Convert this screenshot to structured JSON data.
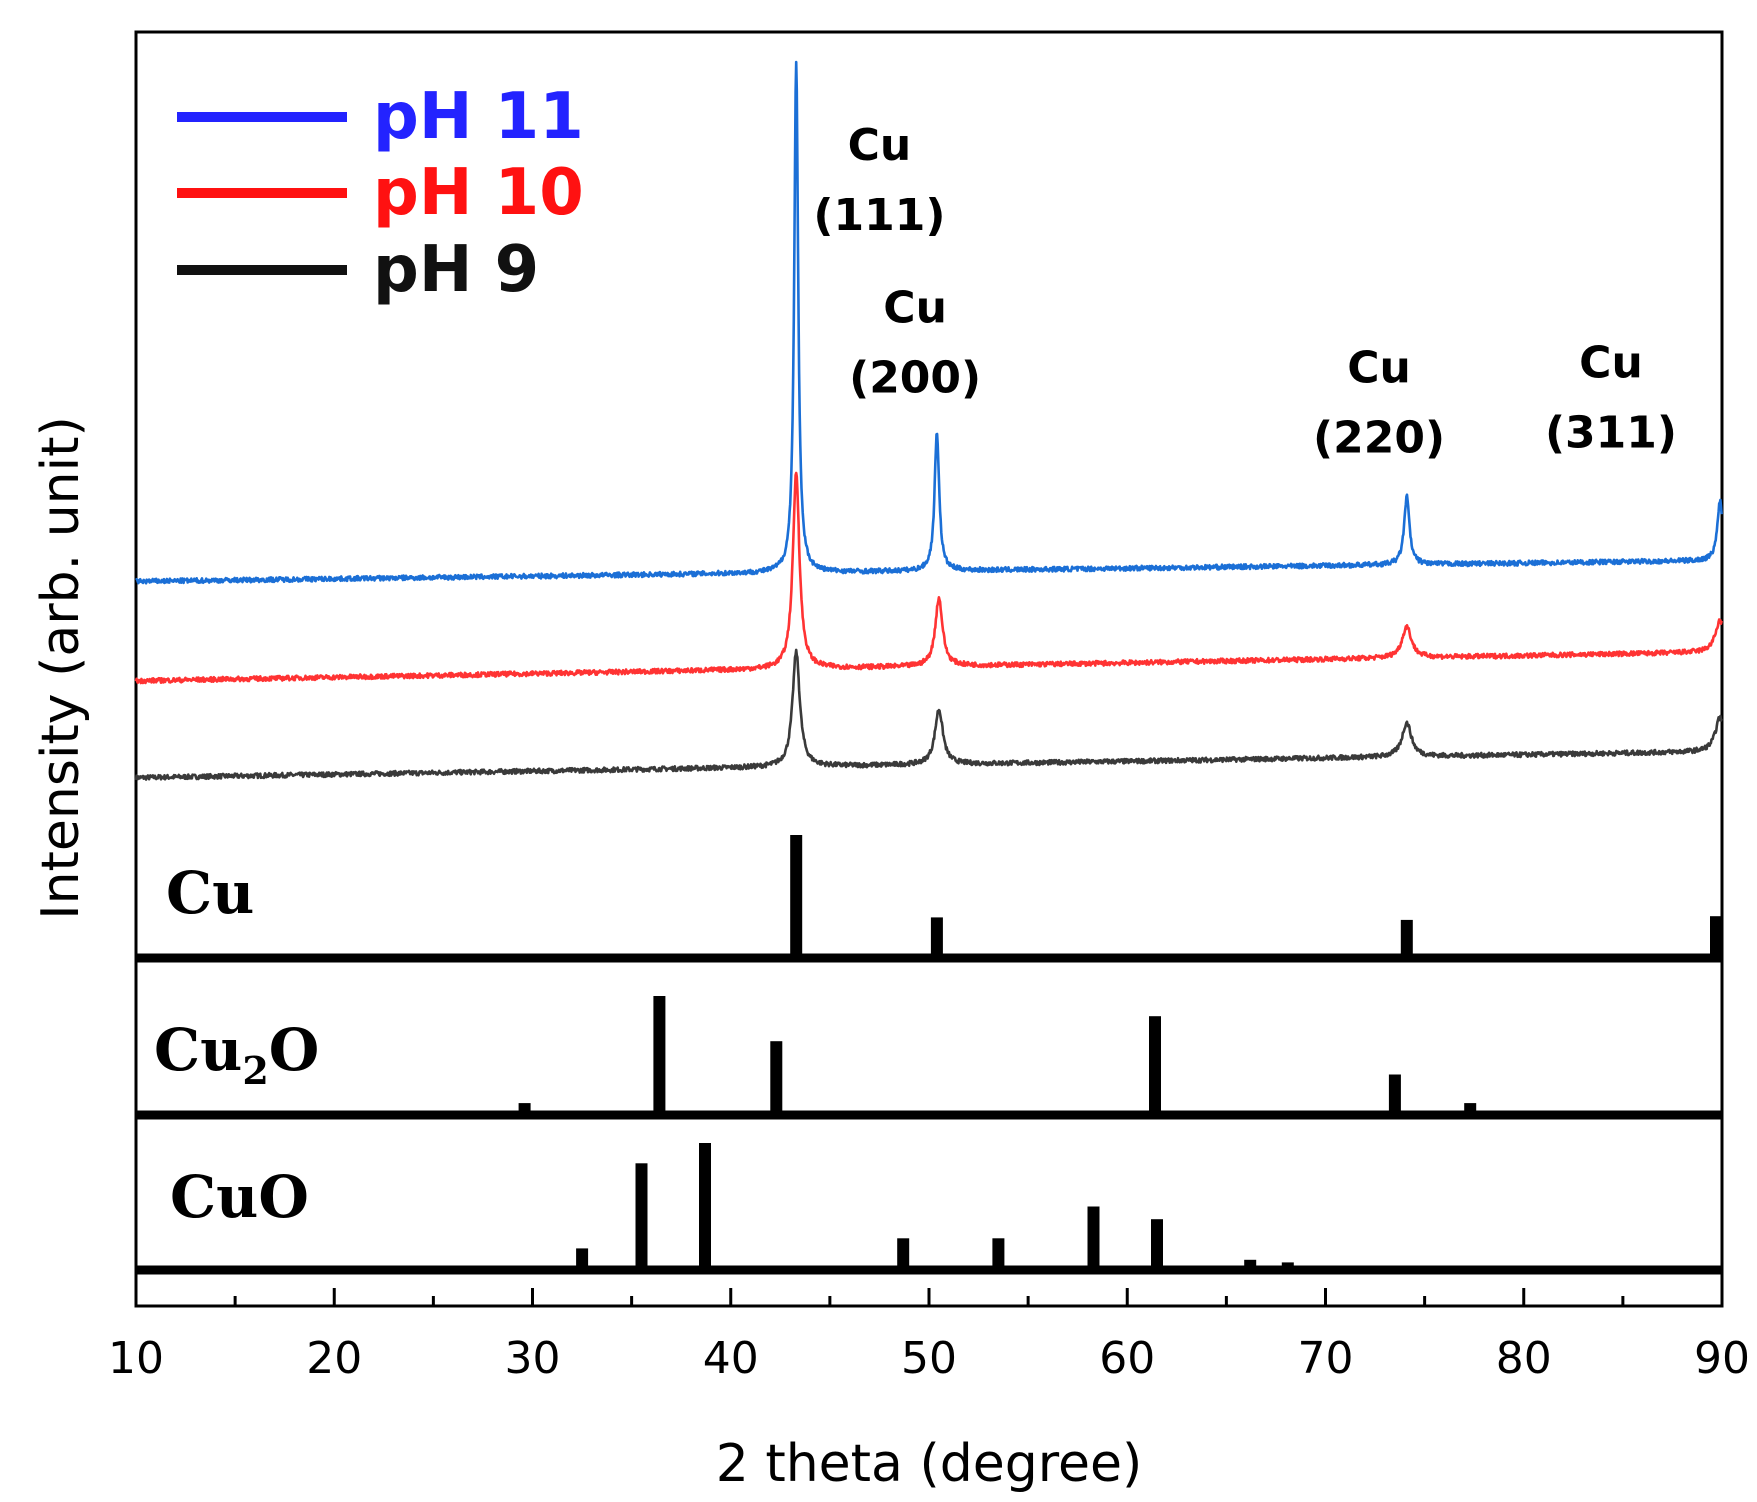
{
  "chart_data": {
    "type": "line",
    "xlabel": "2 theta (degree)",
    "ylabel": "Intensity (arb. unit)",
    "xlim": [
      10,
      90
    ],
    "xticks": [
      10,
      20,
      30,
      40,
      50,
      60,
      70,
      80,
      90
    ],
    "series": [
      {
        "name": "pH 11",
        "color": "#1b6fd6",
        "legend_color": "#2323ff",
        "baseline_start": 0.5,
        "baseline_end": 1.3,
        "peaks": [
          {
            "x": 43.3,
            "height": 19.5,
            "width": 0.12
          },
          {
            "x": 50.4,
            "height": 5.3,
            "width": 0.14
          },
          {
            "x": 74.1,
            "height": 2.6,
            "width": 0.16
          },
          {
            "x": 89.9,
            "height": 2.3,
            "width": 0.16
          }
        ]
      },
      {
        "name": "pH 10",
        "color": "#ff3333",
        "legend_color": "#ff1111",
        "baseline_start": -3.3,
        "baseline_end": -2.2,
        "peaks": [
          {
            "x": 43.3,
            "height": 7.5,
            "width": 0.2
          },
          {
            "x": 50.5,
            "height": 2.6,
            "width": 0.22
          },
          {
            "x": 74.1,
            "height": 1.2,
            "width": 0.28
          },
          {
            "x": 89.9,
            "height": 1.2,
            "width": 0.28
          }
        ]
      },
      {
        "name": "pH 9",
        "color": "#3a3a3a",
        "legend_color": "#111111",
        "baseline_start": -7.0,
        "baseline_end": -6.0,
        "peaks": [
          {
            "x": 43.3,
            "height": 4.4,
            "width": 0.22
          },
          {
            "x": 50.5,
            "height": 2.1,
            "width": 0.24
          },
          {
            "x": 74.1,
            "height": 1.3,
            "width": 0.28
          },
          {
            "x": 89.9,
            "height": 1.3,
            "width": 0.28
          }
        ]
      }
    ],
    "y_range": [
      -9,
      21
    ],
    "annotations": [
      {
        "line1": "Cu",
        "line2": "(111)",
        "x": 47.5,
        "y": 16.6
      },
      {
        "line1": "Cu",
        "line2": "(200)",
        "x": 49.3,
        "y": 10.4
      },
      {
        "line1": "Cu",
        "line2": "(220)",
        "x": 72.7,
        "y": 8.1
      },
      {
        "line1": "Cu",
        "line2": "(311)",
        "x": 84.4,
        "y": 8.3
      }
    ],
    "reference_panels": [
      {
        "name": "Cu",
        "label_main": "Cu",
        "label_sub": "",
        "label_tail": "",
        "lines": [
          {
            "x": 43.3,
            "intensity": 100
          },
          {
            "x": 50.4,
            "intensity": 33
          },
          {
            "x": 74.1,
            "intensity": 31
          },
          {
            "x": 89.9,
            "intensity": 34
          }
        ]
      },
      {
        "name": "Cu2O",
        "label_main": "Cu",
        "label_sub": "2",
        "label_tail": "O",
        "lines": [
          {
            "x": 29.6,
            "intensity": 10
          },
          {
            "x": 36.4,
            "intensity": 100
          },
          {
            "x": 42.3,
            "intensity": 62
          },
          {
            "x": 61.4,
            "intensity": 83
          },
          {
            "x": 73.5,
            "intensity": 34
          },
          {
            "x": 77.3,
            "intensity": 10
          }
        ]
      },
      {
        "name": "CuO",
        "label_main": "CuO",
        "label_sub": "",
        "label_tail": "",
        "lines": [
          {
            "x": 32.5,
            "intensity": 17
          },
          {
            "x": 35.5,
            "intensity": 84
          },
          {
            "x": 38.7,
            "intensity": 100
          },
          {
            "x": 48.7,
            "intensity": 25
          },
          {
            "x": 53.5,
            "intensity": 25
          },
          {
            "x": 58.3,
            "intensity": 50
          },
          {
            "x": 61.5,
            "intensity": 40
          },
          {
            "x": 66.2,
            "intensity": 8
          },
          {
            "x": 68.1,
            "intensity": 6
          }
        ]
      }
    ]
  }
}
